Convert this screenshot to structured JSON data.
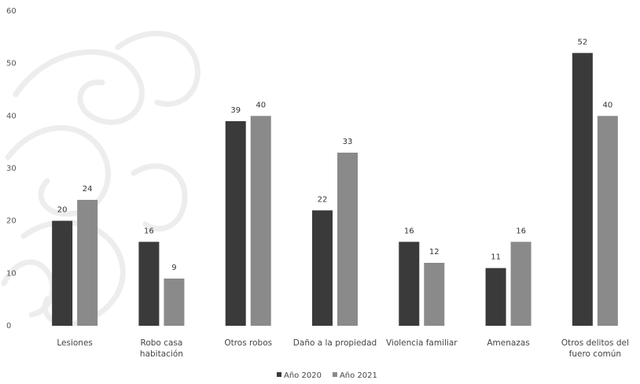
{
  "chart_data": {
    "type": "bar",
    "categories": [
      [
        "Lesiones"
      ],
      [
        "Robo casa",
        "habitación"
      ],
      [
        "Otros robos"
      ],
      [
        "Daño a la propiedad"
      ],
      [
        "Violencia familiar"
      ],
      [
        "Amenazas"
      ],
      [
        "Otros delitos del",
        "fuero común"
      ]
    ],
    "series": [
      {
        "name": "Año 2020",
        "values": [
          20,
          16,
          39,
          22,
          16,
          11,
          52
        ],
        "color": "#3a3a3a"
      },
      {
        "name": "Año 2021",
        "values": [
          24,
          9,
          40,
          33,
          12,
          16,
          40
        ],
        "color": "#8a8a8a"
      }
    ],
    "yticks": [
      0,
      10,
      20,
      30,
      40,
      50,
      60
    ],
    "ylim": [
      0,
      60
    ],
    "grid": false,
    "legend_position": "bottom-center"
  }
}
